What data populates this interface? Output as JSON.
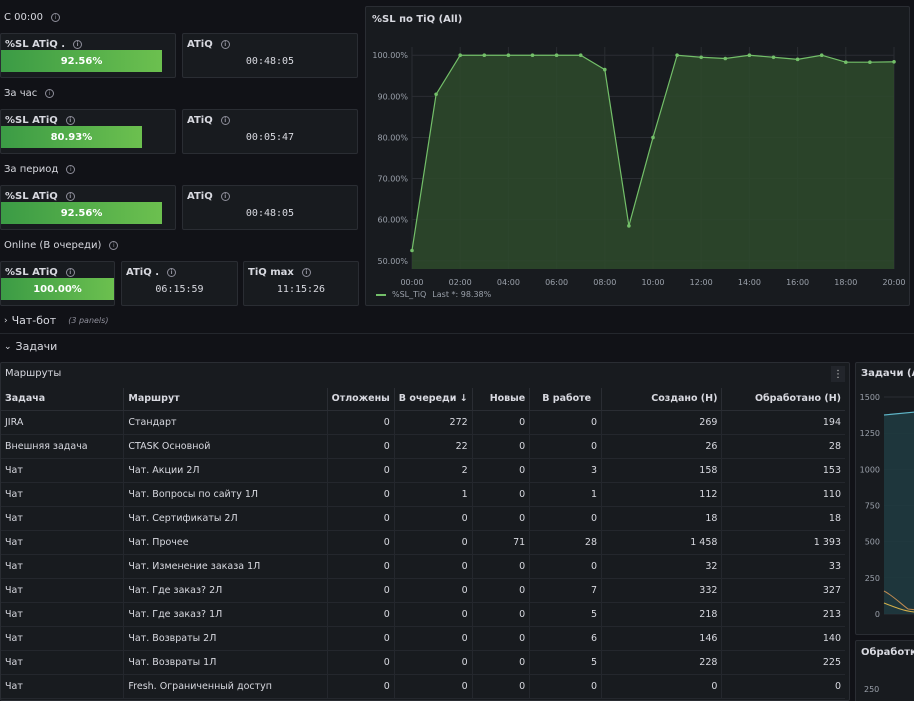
{
  "top": {
    "row1_title": "С 00:00",
    "row2_title": "За час",
    "row3_title": "За период",
    "row4_title": "Online (В очереди)",
    "stats": [
      {
        "label": "%SL ATiQ .",
        "value": "92.56%",
        "fill": 0.9256
      },
      {
        "label": "ATiQ",
        "value": "00:48:05"
      },
      {
        "label": "%SL ATiQ",
        "value": "80.93%",
        "fill": 0.8093
      },
      {
        "label": "ATiQ",
        "value": "00:05:47"
      },
      {
        "label": "%SL ATiQ",
        "value": "92.56%",
        "fill": 0.9256
      },
      {
        "label": "ATiQ",
        "value": "00:48:05"
      },
      {
        "label": "%SL ATiQ",
        "value": "100.00%",
        "fill": 1.0
      },
      {
        "label": "ATiQ .",
        "value": "06:15:59"
      },
      {
        "label": "TiQ max",
        "value": "11:15:26"
      }
    ]
  },
  "chart_panel": {
    "title": "%SL по TiQ (All)",
    "legend_label": "%SL_TiQ",
    "legend_last": "Last *: 98.38%"
  },
  "chart_data": {
    "type": "area",
    "x": [
      "00:00",
      "01:00",
      "02:00",
      "03:00",
      "04:00",
      "05:00",
      "06:00",
      "07:00",
      "08:00",
      "09:00",
      "10:00",
      "11:00",
      "12:00",
      "13:00",
      "14:00",
      "15:00",
      "16:00",
      "17:00",
      "18:00",
      "19:00",
      "20:00"
    ],
    "series": [
      {
        "name": "%SL_TiQ",
        "values": [
          52.5,
          90.5,
          100,
          100,
          100,
          100,
          100,
          100,
          96.5,
          58.5,
          80,
          100,
          99.5,
          99.2,
          100,
          99.5,
          99,
          100,
          98.3,
          98.3,
          98.4
        ]
      }
    ],
    "x_ticks": [
      "00:00",
      "02:00",
      "04:00",
      "06:00",
      "08:00",
      "10:00",
      "12:00",
      "14:00",
      "16:00",
      "18:00",
      "20:00"
    ],
    "y_ticks": [
      "50.00%",
      "60.00%",
      "70.00%",
      "80.00%",
      "90.00%",
      "100.00%"
    ],
    "ylim": [
      48,
      102
    ],
    "grid": true,
    "colors": {
      "line": "#73bf69",
      "fill": "#2e4a2c"
    }
  },
  "sections": {
    "chatbot_label": "Чат-бот",
    "chatbot_sub": "(3 panels)",
    "tasks_label": "Задачи"
  },
  "routes_panel": {
    "title": "Маршруты",
    "columns": [
      "Задача",
      "Маршрут",
      "Отложены",
      "В очереди",
      "Новые",
      "В работе",
      "Создано (Н)",
      "Обработано (Н)"
    ],
    "rows": [
      [
        "JIRA",
        "Стандарт",
        "0",
        "272",
        "0",
        "0",
        "269",
        "194"
      ],
      [
        "Внешняя задача",
        "CTASK Основной",
        "0",
        "22",
        "0",
        "0",
        "26",
        "28"
      ],
      [
        "Чат",
        "Чат. Акции 2Л",
        "0",
        "2",
        "0",
        "3",
        "158",
        "153"
      ],
      [
        "Чат",
        "Чат. Вопросы по сайту 1Л",
        "0",
        "1",
        "0",
        "1",
        "112",
        "110"
      ],
      [
        "Чат",
        "Чат. Сертификаты 2Л",
        "0",
        "0",
        "0",
        "0",
        "18",
        "18"
      ],
      [
        "Чат",
        "Чат. Прочее",
        "0",
        "0",
        "71",
        "28",
        "1 458",
        "1 393"
      ],
      [
        "Чат",
        "Чат. Изменение заказа 1Л",
        "0",
        "0",
        "0",
        "0",
        "32",
        "33"
      ],
      [
        "Чат",
        "Чат. Где заказ? 2Л",
        "0",
        "0",
        "0",
        "7",
        "332",
        "327"
      ],
      [
        "Чат",
        "Чат. Где заказ? 1Л",
        "0",
        "0",
        "0",
        "5",
        "218",
        "213"
      ],
      [
        "Чат",
        "Чат. Возвраты 2Л",
        "0",
        "0",
        "0",
        "6",
        "146",
        "140"
      ],
      [
        "Чат",
        "Чат. Возвраты 1Л",
        "0",
        "0",
        "0",
        "5",
        "228",
        "225"
      ],
      [
        "Чат",
        "Fresh. Ограниченный доступ",
        "0",
        "0",
        "0",
        "0",
        "0",
        "0"
      ]
    ]
  },
  "right_panel": {
    "title": "Задачи (All)",
    "y_ticks": [
      "1500",
      "1250",
      "1000",
      "750",
      "500",
      "250",
      "0"
    ]
  },
  "right_panel2": {
    "title": "Обработка",
    "y_tick": "250"
  }
}
